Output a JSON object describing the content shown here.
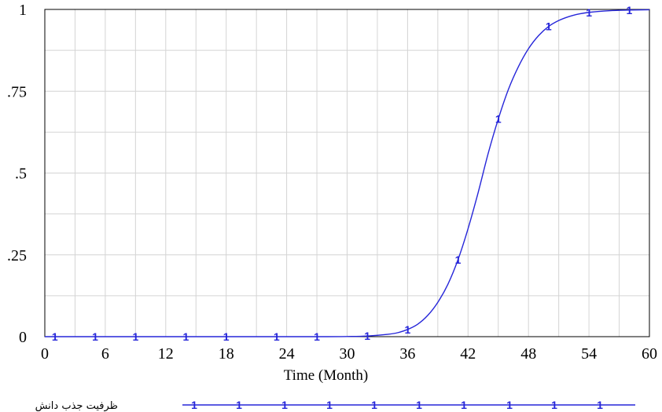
{
  "chart_data": {
    "type": "line",
    "xlabel": "Time (Month)",
    "x_ticks": [
      "0",
      "6",
      "12",
      "18",
      "24",
      "30",
      "36",
      "42",
      "48",
      "54",
      "60"
    ],
    "y_ticks": [
      "0",
      ".25",
      ".5",
      ".75",
      "1"
    ],
    "xlim": [
      0,
      60
    ],
    "ylim": [
      0,
      1
    ],
    "grid": true,
    "legend_position": "bottom-left",
    "series": [
      {
        "name": "ظرفیت جذب دانش",
        "color": "#2626d9",
        "marker_label": "1",
        "x": [
          0,
          4,
          8,
          12,
          16,
          20,
          24,
          28,
          30,
          32,
          34,
          35,
          36,
          37,
          38,
          39,
          40,
          41,
          42,
          43,
          44,
          45,
          46,
          47,
          48,
          49,
          50,
          51,
          52,
          53,
          54,
          56,
          58,
          60
        ],
        "y": [
          0,
          0,
          0,
          0,
          0,
          0,
          0,
          0,
          0.0005,
          0.002,
          0.007,
          0.012,
          0.022,
          0.038,
          0.065,
          0.105,
          0.16,
          0.235,
          0.33,
          0.44,
          0.56,
          0.665,
          0.755,
          0.825,
          0.88,
          0.92,
          0.948,
          0.966,
          0.978,
          0.986,
          0.991,
          0.996,
          0.998,
          0.999
        ],
        "marker_x": [
          1,
          5,
          9,
          14,
          18,
          23,
          27,
          32,
          36,
          41,
          45,
          50,
          54,
          58
        ]
      }
    ]
  }
}
